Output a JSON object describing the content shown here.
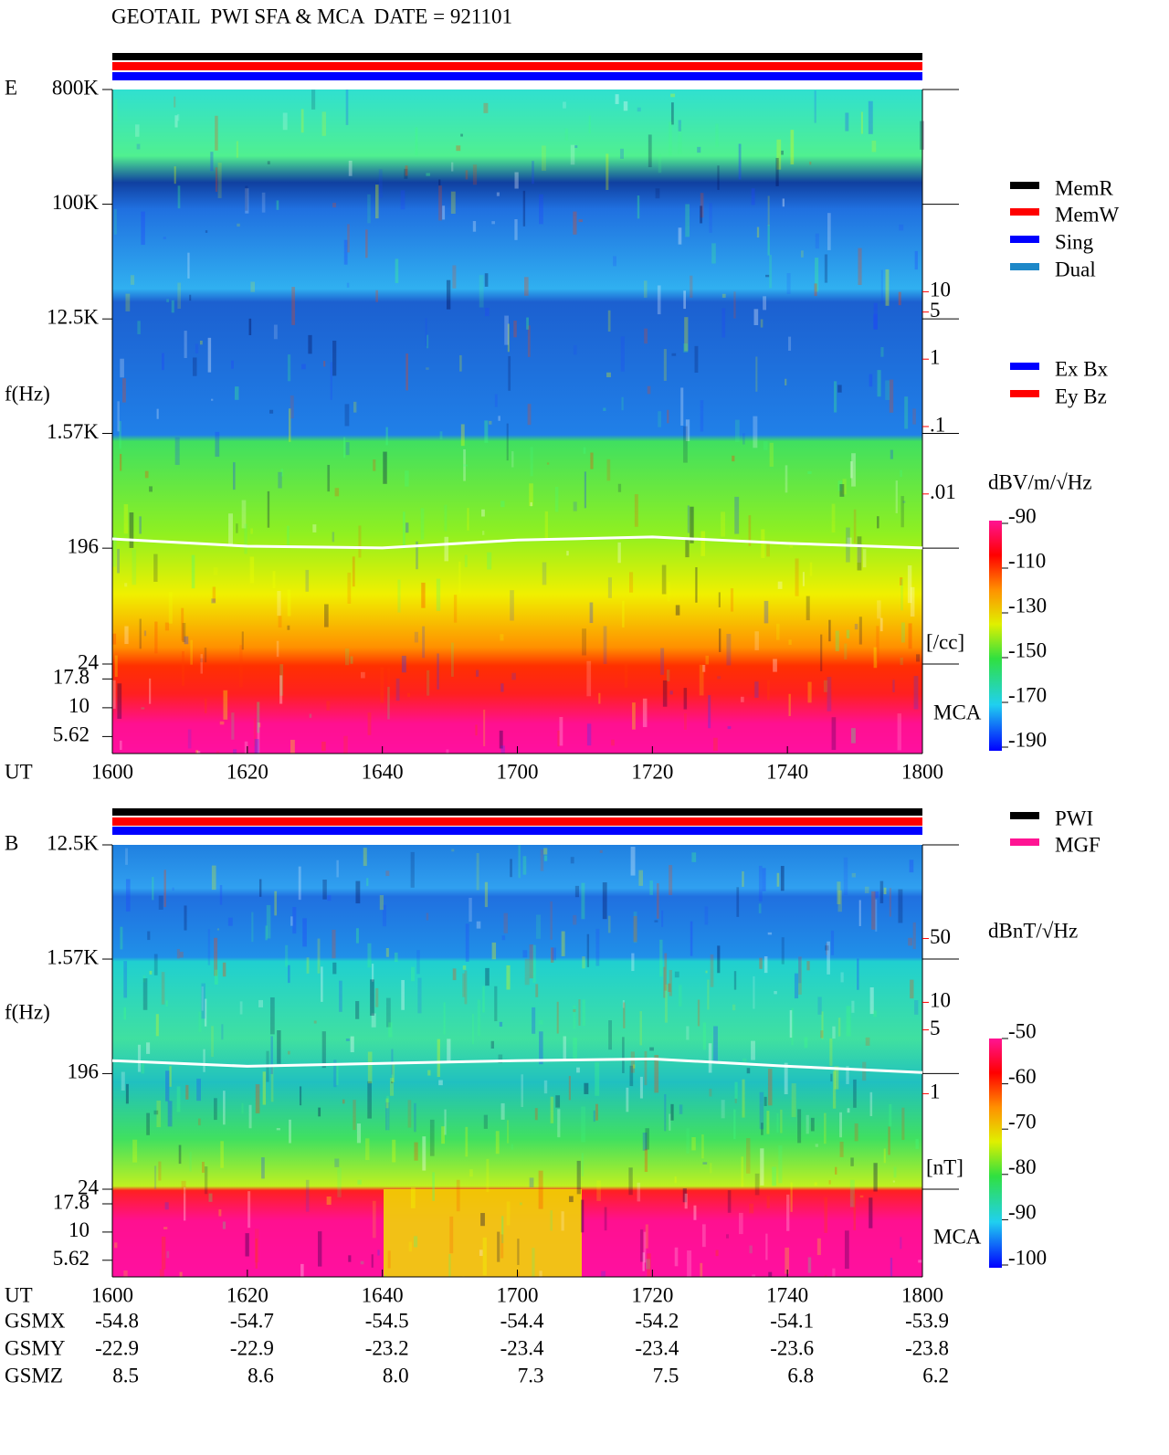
{
  "title": "GEOTAIL  PWI SFA & MCA  DATE = 921101",
  "chart_data": [
    {
      "type": "spectrogram",
      "panel_label": "E",
      "y_label": "f(Hz)",
      "x_label": "UT",
      "x_categories": [
        "1600",
        "1620",
        "1640",
        "1700",
        "1720",
        "1740",
        "1800"
      ],
      "ylog": true,
      "ylim": [
        24,
        800000
      ],
      "yticks": [
        {
          "value": 800000,
          "label": "800K"
        },
        {
          "value": 100000,
          "label": "100K"
        },
        {
          "value": 12500,
          "label": "12.5K"
        },
        {
          "value": 1570,
          "label": "1.57K"
        },
        196,
        24
      ],
      "mca_label": "MCA",
      "mca_ylim": [
        4,
        24
      ],
      "mca_ticks": [
        17.8,
        10,
        5.62
      ],
      "y2lim": [
        3e-05,
        10000
      ],
      "y2ticks": [
        10,
        5,
        1,
        {
          "value": 0.1,
          "label": ".1"
        },
        {
          "value": 0.01,
          "label": ".01"
        }
      ],
      "y2_unit": "[/cc]",
      "y2_color": "#ff0000",
      "line": {
        "color": "#ffffff",
        "values": [
          232,
          203,
          197,
          227,
          240,
          214,
          197
        ]
      },
      "colorbar_label": "dBV/m/√Hz",
      "clim": [
        -190,
        -90
      ],
      "cticks": [
        -90,
        -110,
        -130,
        -150,
        -170,
        -190
      ],
      "legend": [
        {
          "name": "MemR",
          "color": "#000000"
        },
        {
          "name": "MemW",
          "color": "#ff0000"
        },
        {
          "name": "Sing",
          "color": "#0000ff"
        },
        {
          "name": "Dual",
          "color": "#1e88c8"
        }
      ],
      "legend2": [
        {
          "name": "Ex Bx",
          "color": "#0000ff"
        },
        {
          "name": "Ey Bz",
          "color": "#ff0000"
        }
      ]
    },
    {
      "type": "spectrogram",
      "panel_label": "B",
      "y_label": "f(Hz)",
      "x_label": "UT",
      "x_categories": [
        "1600",
        "1620",
        "1640",
        "1700",
        "1720",
        "1740",
        "1800"
      ],
      "ylog": true,
      "ylim": [
        24,
        12500
      ],
      "yticks": [
        {
          "value": 12500,
          "label": "12.5K"
        },
        {
          "value": 1570,
          "label": "1.57K"
        },
        196,
        24
      ],
      "mca_label": "MCA",
      "mca_ylim": [
        4,
        24
      ],
      "mca_ticks": [
        17.8,
        10,
        5.62
      ],
      "y2lim": [
        0.09,
        530
      ],
      "y2ticks": [
        50,
        10,
        5,
        1
      ],
      "y2_unit": "[nT]",
      "y2_color": "#ff0000",
      "line": {
        "color": "#ffffff",
        "values": [
          248,
          224,
          236,
          248,
          256,
          224,
          200
        ]
      },
      "colorbar_label": "dBnT/√Hz",
      "clim": [
        -100,
        -50
      ],
      "cticks": [
        -50,
        -60,
        -70,
        -80,
        -90,
        -100
      ],
      "legend": [
        {
          "name": "PWI",
          "color": "#000000"
        },
        {
          "name": "MGF",
          "color": "#ff1493"
        }
      ],
      "legend2": []
    }
  ],
  "orbit": {
    "rows": [
      {
        "label": "GSMX",
        "values": [
          "-54.8",
          "-54.7",
          "-54.5",
          "-54.4",
          "-54.2",
          "-54.1",
          "-53.9"
        ]
      },
      {
        "label": "GSMY",
        "values": [
          "-22.9",
          "-22.9",
          "-23.2",
          "-23.4",
          "-23.4",
          "-23.6",
          "-23.8"
        ]
      },
      {
        "label": "GSMZ",
        "values": [
          "8.5",
          "8.6",
          "8.0",
          "7.3",
          "7.5",
          "6.8",
          "6.2"
        ]
      }
    ]
  }
}
